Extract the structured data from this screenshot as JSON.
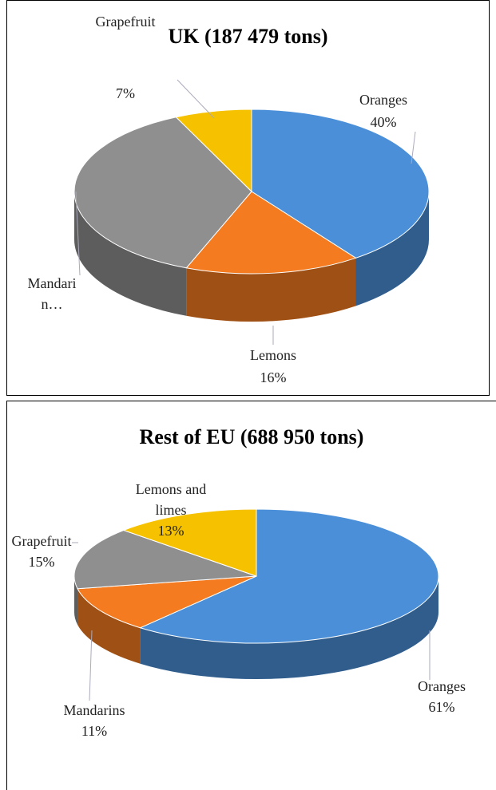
{
  "chart_data": [
    {
      "type": "pie3d",
      "title": "UK (187 479 tons)",
      "categories": [
        "Oranges",
        "Lemons",
        "Mandarin…",
        "Grapefruit"
      ],
      "values": [
        40,
        16,
        37,
        7
      ],
      "value_labels": [
        "40%",
        "16%",
        null,
        "7%"
      ],
      "colors": [
        "#4a8fd8",
        "#f47b20",
        "#8f8f8f",
        "#f6c200"
      ]
    },
    {
      "type": "pie3d",
      "title": "Rest of EU (688 950 tons)",
      "categories": [
        "Oranges",
        "Mandarins",
        "Grapefruit",
        "Lemons and limes"
      ],
      "values": [
        61,
        11,
        15,
        13
      ],
      "value_labels": [
        "61%",
        "11%",
        "15%",
        "13%"
      ],
      "colors": [
        "#4a8fd8",
        "#f47b20",
        "#8f8f8f",
        "#f6c200"
      ]
    }
  ]
}
